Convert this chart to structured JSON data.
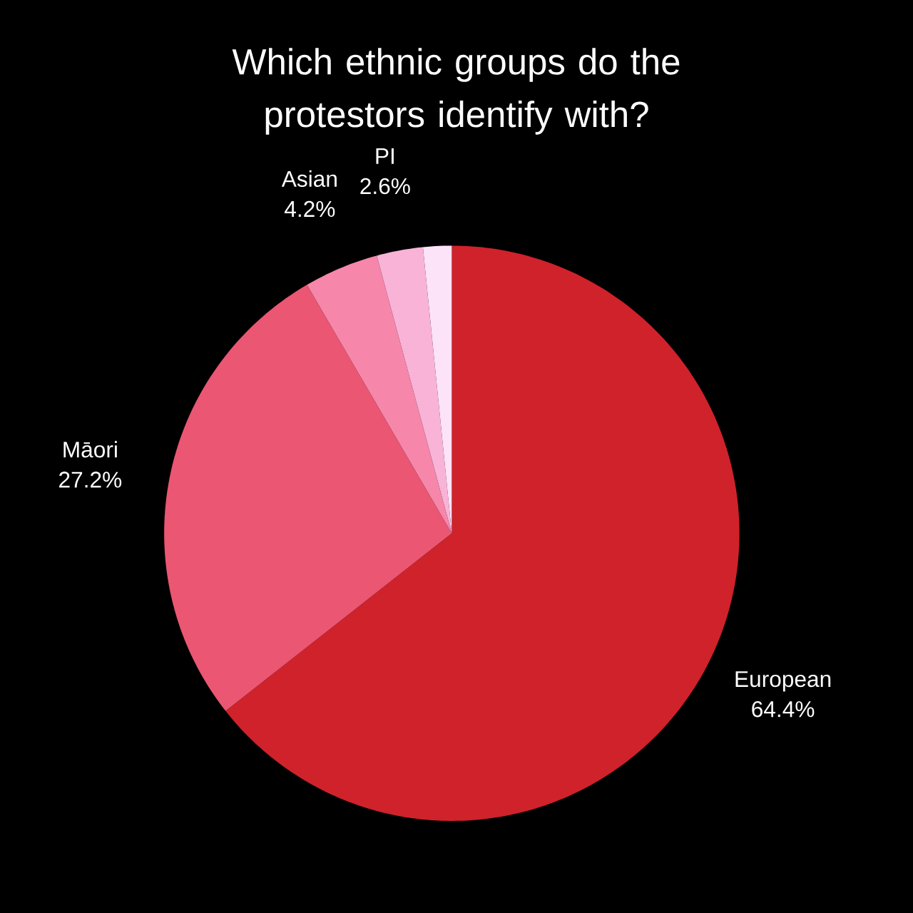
{
  "chart_data": {
    "type": "pie",
    "title": "Which ethnic groups do the protestors identify with?",
    "categories": [
      "European",
      "Māori",
      "Asian",
      "PI",
      null
    ],
    "values": [
      64.4,
      27.2,
      4.2,
      2.6,
      1.6
    ],
    "value_labels": [
      "64.4%",
      "27.2%",
      "4.2%",
      "2.6%",
      null
    ],
    "colors": [
      "#d0222b",
      "#eb5672",
      "#f786ab",
      "#f9b3d7",
      "#fde3f7"
    ]
  }
}
